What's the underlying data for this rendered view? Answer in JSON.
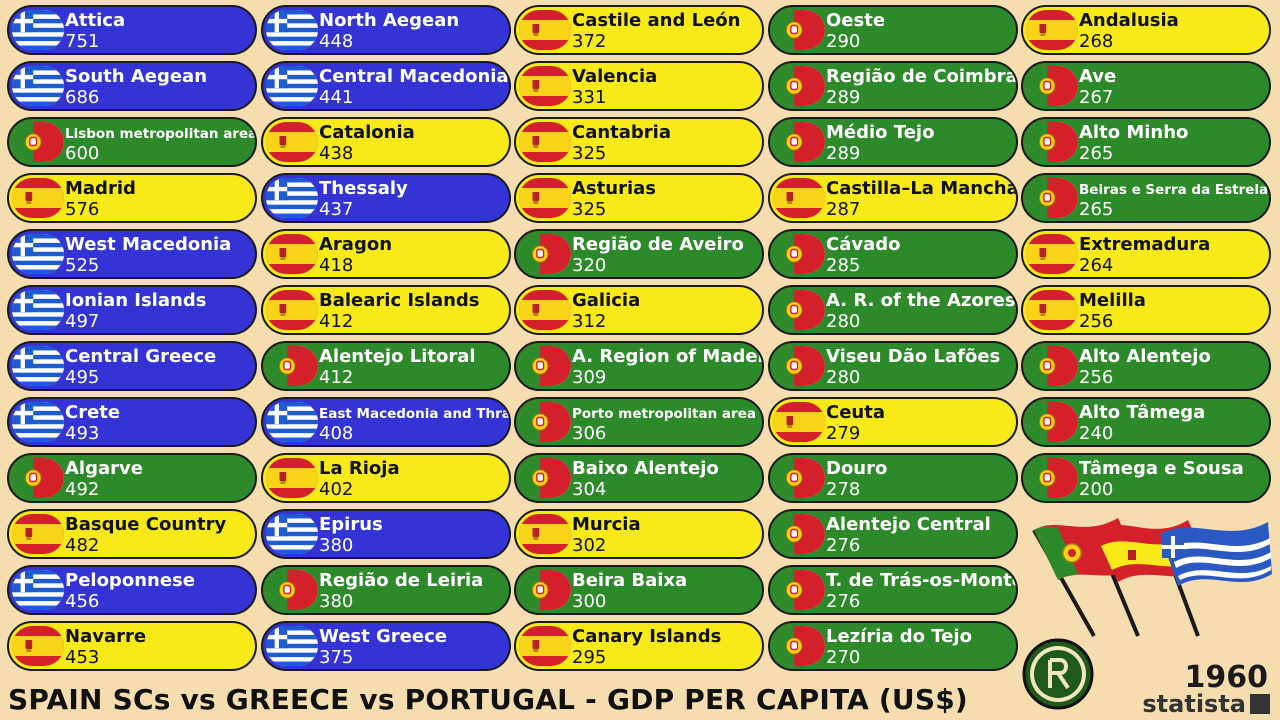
{
  "title": "SPAIN SCs vs GREECE vs PORTUGAL - GDP PER CAPITA (US$)",
  "year": "1960",
  "brand": "statista",
  "colors": {
    "greece": "#3434d6",
    "spain": "#f7ea18",
    "portugal": "#2d8a2a",
    "background": "#f6ddb0"
  },
  "chart_data": {
    "type": "bar",
    "title": "SPAIN SCs vs GREECE vs PORTUGAL - GDP PER CAPITA (US$)",
    "unit": "US$",
    "year": "1960",
    "entries": [
      {
        "name": "Attica",
        "value": 751,
        "country": "greece"
      },
      {
        "name": "South Aegean",
        "value": 686,
        "country": "greece"
      },
      {
        "name": "Lisbon metropolitan area",
        "value": 600,
        "country": "portugal"
      },
      {
        "name": "Madrid",
        "value": 576,
        "country": "spain"
      },
      {
        "name": "West Macedonia",
        "value": 525,
        "country": "greece"
      },
      {
        "name": "Ionian Islands",
        "value": 497,
        "country": "greece"
      },
      {
        "name": "Central Greece",
        "value": 495,
        "country": "greece"
      },
      {
        "name": "Crete",
        "value": 493,
        "country": "greece"
      },
      {
        "name": "Algarve",
        "value": 492,
        "country": "portugal"
      },
      {
        "name": "Basque Country",
        "value": 482,
        "country": "spain"
      },
      {
        "name": "Peloponnese",
        "value": 456,
        "country": "greece"
      },
      {
        "name": "Navarre",
        "value": 453,
        "country": "spain"
      },
      {
        "name": "North Aegean",
        "value": 448,
        "country": "greece"
      },
      {
        "name": "Central Macedonia",
        "value": 441,
        "country": "greece"
      },
      {
        "name": "Catalonia",
        "value": 438,
        "country": "spain"
      },
      {
        "name": "Thessaly",
        "value": 437,
        "country": "greece"
      },
      {
        "name": "Aragon",
        "value": 418,
        "country": "spain"
      },
      {
        "name": "Balearic Islands",
        "value": 412,
        "country": "spain"
      },
      {
        "name": "Alentejo Litoral",
        "value": 412,
        "country": "portugal"
      },
      {
        "name": "East Macedonia and Thrace",
        "value": 408,
        "country": "greece"
      },
      {
        "name": "La Rioja",
        "value": 402,
        "country": "spain"
      },
      {
        "name": "Epirus",
        "value": 380,
        "country": "greece"
      },
      {
        "name": "Região de Leiria",
        "value": 380,
        "country": "portugal"
      },
      {
        "name": "West Greece",
        "value": 375,
        "country": "greece"
      },
      {
        "name": "Castile and León",
        "value": 372,
        "country": "spain"
      },
      {
        "name": "Valencia",
        "value": 331,
        "country": "spain"
      },
      {
        "name": "Cantabria",
        "value": 325,
        "country": "spain"
      },
      {
        "name": "Asturias",
        "value": 325,
        "country": "spain"
      },
      {
        "name": "Região de Aveiro",
        "value": 320,
        "country": "portugal"
      },
      {
        "name": "Galicia",
        "value": 312,
        "country": "spain"
      },
      {
        "name": "A. Region of Madeira",
        "value": 309,
        "country": "portugal"
      },
      {
        "name": "Porto metropolitan area",
        "value": 306,
        "country": "portugal"
      },
      {
        "name": "Baixo Alentejo",
        "value": 304,
        "country": "portugal"
      },
      {
        "name": "Murcia",
        "value": 302,
        "country": "spain"
      },
      {
        "name": "Beira Baixa",
        "value": 300,
        "country": "portugal"
      },
      {
        "name": "Canary Islands",
        "value": 295,
        "country": "spain"
      },
      {
        "name": "Oeste",
        "value": 290,
        "country": "portugal"
      },
      {
        "name": "Região de Coimbra",
        "value": 289,
        "country": "portugal"
      },
      {
        "name": "Médio Tejo",
        "value": 289,
        "country": "portugal"
      },
      {
        "name": "Castilla–La Mancha",
        "value": 287,
        "country": "spain"
      },
      {
        "name": "Cávado",
        "value": 285,
        "country": "portugal"
      },
      {
        "name": "A. R. of the Azores",
        "value": 280,
        "country": "portugal"
      },
      {
        "name": "Viseu Dão Lafões",
        "value": 280,
        "country": "portugal"
      },
      {
        "name": "Ceuta",
        "value": 279,
        "country": "spain"
      },
      {
        "name": "Douro",
        "value": 278,
        "country": "portugal"
      },
      {
        "name": "Alentejo Central",
        "value": 276,
        "country": "portugal"
      },
      {
        "name": "T. de Trás-os-Montes",
        "value": 276,
        "country": "portugal"
      },
      {
        "name": "Lezíria do Tejo",
        "value": 270,
        "country": "portugal"
      },
      {
        "name": "Andalusia",
        "value": 268,
        "country": "spain"
      },
      {
        "name": "Ave",
        "value": 267,
        "country": "portugal"
      },
      {
        "name": "Alto Minho",
        "value": 265,
        "country": "portugal"
      },
      {
        "name": "Beiras e Serra da Estrela",
        "value": 265,
        "country": "portugal"
      },
      {
        "name": "Extremadura",
        "value": 264,
        "country": "spain"
      },
      {
        "name": "Melilla",
        "value": 256,
        "country": "spain"
      },
      {
        "name": "Alto Alentejo",
        "value": 256,
        "country": "portugal"
      },
      {
        "name": "Alto Tâmega",
        "value": 240,
        "country": "portugal"
      },
      {
        "name": "Tâmega e Sousa",
        "value": 200,
        "country": "portugal"
      }
    ]
  }
}
